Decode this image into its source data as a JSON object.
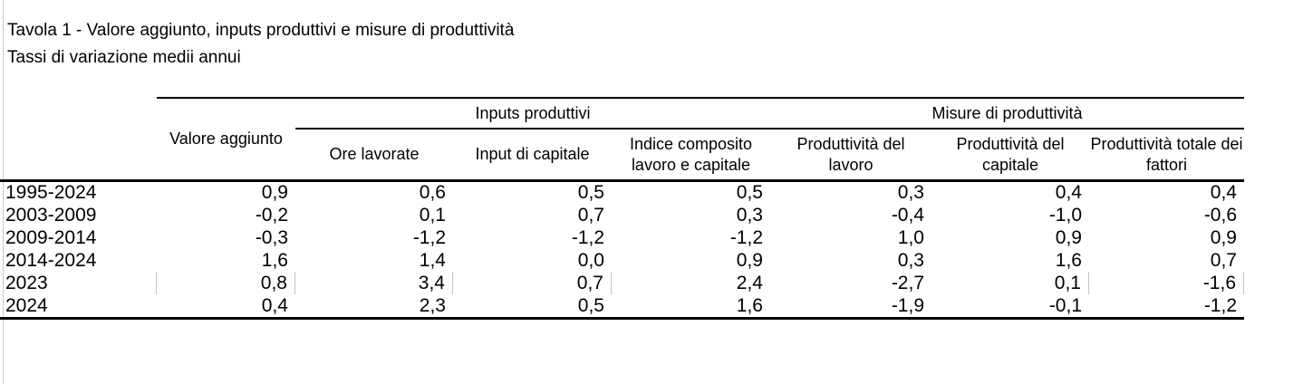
{
  "page": {
    "title": "Tavola 1 - Valore aggiunto, inputs produttivi e misure di produttività",
    "subtitle": "Tassi di variazione medii annui"
  },
  "table": {
    "first_column_header": "Valore aggiunto",
    "groups": [
      {
        "label": "Inputs produttivi",
        "columns": [
          "Ore lavorate",
          "Input di capitale",
          "Indice composito\nlavoro e capitale"
        ]
      },
      {
        "label": "Misure di produttività",
        "columns": [
          "Produttività del\nlavoro",
          "Produttività del\ncapitale",
          "Produttività totale dei\nfattori"
        ]
      }
    ],
    "rows": [
      {
        "label": "1995-2024",
        "values": [
          "0,9",
          "0,6",
          "0,5",
          "0,5",
          "0,3",
          "0,4",
          "0,4"
        ]
      },
      {
        "label": "2003-2009",
        "values": [
          "-0,2",
          "0,1",
          "0,7",
          "0,3",
          "-0,4",
          "-1,0",
          "-0,6"
        ]
      },
      {
        "label": "2009-2014",
        "values": [
          "-0,3",
          "-1,2",
          "-1,2",
          "-1,2",
          "1,0",
          "0,9",
          "0,9"
        ]
      },
      {
        "label": "2014-2024",
        "values": [
          "1,6",
          "1,4",
          "0,0",
          "0,9",
          "0,3",
          "1,6",
          "0,7"
        ]
      },
      {
        "label": "2023",
        "values": [
          "0,8",
          "3,4",
          "0,7",
          "2,4",
          "-2,7",
          "0,1",
          "-1,6"
        ]
      },
      {
        "label": "2024",
        "values": [
          "0,4",
          "2,3",
          "0,5",
          "1,6",
          "-1,9",
          "-0,1",
          "-1,2"
        ]
      }
    ]
  },
  "colors": {
    "text": "#000000",
    "rule": "#000000",
    "faint_line": "#c8c8c8"
  }
}
